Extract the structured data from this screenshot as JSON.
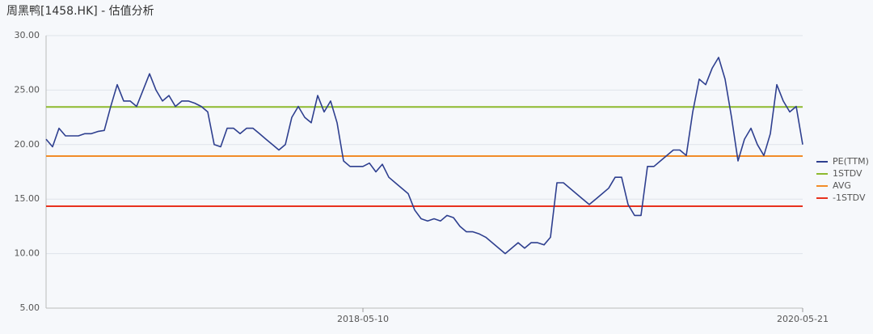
{
  "chart_data": {
    "type": "line",
    "title": "周黑鸭[1458.HK] - 估值分析",
    "categories": [
      null,
      null,
      null,
      null,
      null,
      null,
      null,
      null,
      null,
      null,
      null,
      null,
      null,
      null,
      null,
      null,
      null,
      null,
      null,
      null,
      null,
      null,
      null,
      null,
      null,
      null,
      null,
      null,
      null,
      null,
      null,
      null,
      null,
      null,
      null,
      null,
      null,
      null,
      null,
      null,
      null,
      null,
      null,
      null,
      null,
      null,
      null,
      null,
      null,
      "2018-05-10",
      null,
      null,
      null,
      null,
      null,
      null,
      null,
      null,
      null,
      null,
      null,
      null,
      null,
      null,
      null,
      null,
      null,
      null,
      null,
      null,
      null,
      null,
      null,
      null,
      null,
      null,
      null,
      null,
      null,
      null,
      null,
      null,
      null,
      null,
      null,
      null,
      null,
      null,
      null,
      null,
      null,
      null,
      null,
      null,
      null,
      null,
      null,
      null,
      null,
      null,
      null,
      null,
      null,
      null,
      null,
      null,
      null,
      null,
      null,
      null,
      null,
      null,
      null,
      null,
      null,
      null,
      null,
      "2020-05-21"
    ],
    "series": [
      {
        "name": "PE(TTM)",
        "color": "#2e3f8f",
        "values": [
          20.5,
          19.8,
          21.5,
          20.8,
          20.8,
          20.8,
          21.0,
          21.0,
          21.2,
          21.3,
          23.5,
          25.5,
          24.0,
          24.0,
          23.5,
          25.0,
          26.5,
          25.0,
          24.0,
          24.5,
          23.5,
          24.0,
          24.0,
          23.8,
          23.5,
          23.0,
          20.0,
          19.8,
          21.5,
          21.5,
          21.0,
          21.5,
          21.5,
          21.0,
          20.5,
          20.0,
          19.5,
          20.0,
          22.5,
          23.5,
          22.5,
          22.0,
          24.5,
          23.0,
          24.0,
          22.0,
          18.5,
          18.0,
          18.0,
          18.0,
          18.3,
          17.5,
          18.2,
          17.0,
          16.5,
          16.0,
          15.5,
          14.0,
          13.2,
          13.0,
          13.2,
          13.0,
          13.5,
          13.3,
          12.5,
          12.0,
          12.0,
          11.8,
          11.5,
          11.0,
          10.5,
          10.0,
          10.5,
          11.0,
          10.5,
          11.0,
          11.0,
          10.8,
          11.5,
          16.5,
          16.5,
          16.0,
          15.5,
          15.0,
          14.5,
          15.0,
          15.5,
          16.0,
          17.0,
          17.0,
          14.5,
          13.5,
          13.5,
          18.0,
          18.0,
          18.5,
          19.0,
          19.5,
          19.5,
          19.0,
          23.0,
          26.0,
          25.5,
          27.0,
          28.0,
          26.0,
          22.5,
          18.5,
          20.5,
          21.5,
          20.0,
          19.0,
          21.0,
          25.5,
          24.0,
          23.0,
          23.5,
          20.0
        ]
      }
    ],
    "reference_lines": [
      {
        "name": "1STDV",
        "color": "#8db92e",
        "value": 23.45
      },
      {
        "name": "AVG",
        "color": "#f28c28",
        "value": 18.95
      },
      {
        "name": "-1STDV",
        "color": "#e8321e",
        "value": 14.35
      }
    ],
    "ylim": [
      5,
      30
    ],
    "yticks": [
      {
        "value": 5,
        "label": "5.00"
      },
      {
        "value": 10,
        "label": "10.00"
      },
      {
        "value": 15,
        "label": "15.00"
      },
      {
        "value": 20,
        "label": "20.00"
      },
      {
        "value": 25,
        "label": "25.00"
      },
      {
        "value": 30,
        "label": "30.00"
      }
    ],
    "grid": true,
    "legend": "right"
  }
}
